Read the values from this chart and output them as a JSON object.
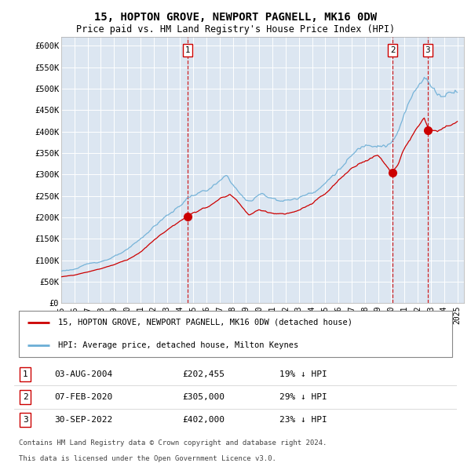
{
  "title": "15, HOPTON GROVE, NEWPORT PAGNELL, MK16 0DW",
  "subtitle": "Price paid vs. HM Land Registry's House Price Index (HPI)",
  "ylim": [
    0,
    620000
  ],
  "yticks": [
    0,
    50000,
    100000,
    150000,
    200000,
    250000,
    300000,
    350000,
    400000,
    450000,
    500000,
    550000,
    600000
  ],
  "ytick_labels": [
    "£0",
    "£50K",
    "£100K",
    "£150K",
    "£200K",
    "£250K",
    "£300K",
    "£350K",
    "£400K",
    "£450K",
    "£500K",
    "£550K",
    "£600K"
  ],
  "hpi_color": "#6baed6",
  "price_color": "#cc0000",
  "vline_color": "#cc0000",
  "background_color": "#dce6f1",
  "grid_color": "#ffffff",
  "xlim_start": 1995.0,
  "xlim_end": 2025.5,
  "purchases": [
    {
      "label": "1",
      "date": "03-AUG-2004",
      "price": 202455,
      "pct": "19%",
      "x_year": 2004.58
    },
    {
      "label": "2",
      "date": "07-FEB-2020",
      "price": 305000,
      "pct": "29%",
      "x_year": 2020.1
    },
    {
      "label": "3",
      "date": "30-SEP-2022",
      "price": 402000,
      "pct": "23%",
      "x_year": 2022.75
    }
  ],
  "legend_line1": "15, HOPTON GROVE, NEWPORT PAGNELL, MK16 0DW (detached house)",
  "legend_line2": "HPI: Average price, detached house, Milton Keynes",
  "footer1": "Contains HM Land Registry data © Crown copyright and database right 2024.",
  "footer2": "This data is licensed under the Open Government Licence v3.0.",
  "hpi_key_years": [
    1995.0,
    1996.0,
    1997.0,
    1998.0,
    1999.0,
    2000.0,
    2001.0,
    2002.0,
    2003.0,
    2004.0,
    2004.5,
    2005.0,
    2006.0,
    2007.0,
    2007.5,
    2008.0,
    2008.5,
    2009.0,
    2009.5,
    2010.0,
    2011.0,
    2012.0,
    2013.0,
    2014.0,
    2015.0,
    2016.0,
    2017.0,
    2018.0,
    2019.0,
    2020.0,
    2020.5,
    2021.0,
    2021.5,
    2022.0,
    2022.5,
    2023.0,
    2023.5,
    2024.0,
    2024.5,
    2025.0
  ],
  "hpi_key_vals": [
    75000,
    80000,
    90000,
    98000,
    110000,
    122000,
    145000,
    175000,
    200000,
    222000,
    240000,
    248000,
    258000,
    275000,
    285000,
    268000,
    248000,
    230000,
    232000,
    245000,
    238000,
    235000,
    240000,
    258000,
    282000,
    315000,
    345000,
    368000,
    385000,
    390000,
    415000,
    455000,
    490000,
    525000,
    555000,
    530000,
    510000,
    510000,
    525000,
    535000
  ],
  "price_key_years": [
    1995.0,
    1996.0,
    1997.0,
    1998.0,
    1999.0,
    2000.0,
    2001.0,
    2002.0,
    2003.0,
    2004.0,
    2004.58,
    2005.0,
    2006.0,
    2007.0,
    2007.8,
    2008.5,
    2009.2,
    2010.0,
    2011.0,
    2012.0,
    2013.0,
    2014.0,
    2015.0,
    2016.0,
    2017.0,
    2018.0,
    2019.0,
    2020.0,
    2020.1,
    2020.5,
    2021.0,
    2021.5,
    2022.0,
    2022.5,
    2022.75,
    2023.0,
    2023.5,
    2024.0,
    2024.5,
    2025.0
  ],
  "price_key_vals": [
    62000,
    66000,
    74000,
    82000,
    92000,
    104000,
    123000,
    150000,
    175000,
    195000,
    202455,
    215000,
    225000,
    245000,
    255000,
    235000,
    208000,
    218000,
    212000,
    210000,
    215000,
    230000,
    250000,
    278000,
    305000,
    325000,
    340000,
    300000,
    305000,
    320000,
    355000,
    378000,
    400000,
    420000,
    402000,
    395000,
    390000,
    395000,
    400000,
    410000
  ]
}
